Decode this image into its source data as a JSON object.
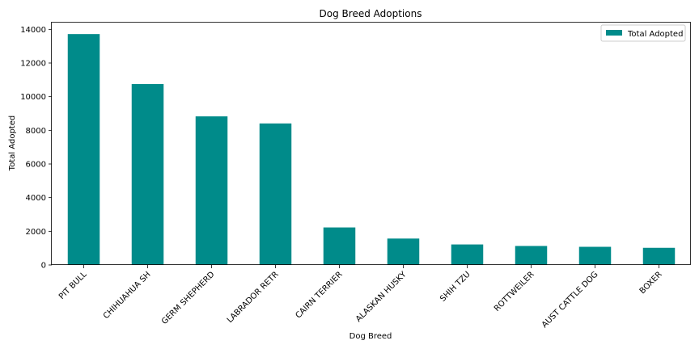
{
  "chart_data": {
    "type": "bar",
    "title": "Dog Breed Adoptions",
    "xlabel": "Dog Breed",
    "ylabel": "Total Adopted",
    "categories": [
      "PIT BULL",
      "CHIHUAHUA SH",
      "GERM SHEPHERD",
      "LABRADOR RETR",
      "CAIRN TERRIER",
      "ALASKAN HUSKY",
      "SHIH TZU",
      "ROTTWEILER",
      "AUST CATTLE DOG",
      "BOXER"
    ],
    "series": [
      {
        "name": "Total Adopted",
        "values": [
          13720,
          10750,
          8830,
          8410,
          2230,
          1570,
          1220,
          1130,
          1080,
          1020
        ]
      }
    ],
    "ylim": [
      0,
      14400
    ],
    "yticks": [
      0,
      2000,
      4000,
      6000,
      8000,
      10000,
      12000,
      14000
    ],
    "bar_color": "#008b8a",
    "legend_position": "top-right",
    "grid": false
  }
}
